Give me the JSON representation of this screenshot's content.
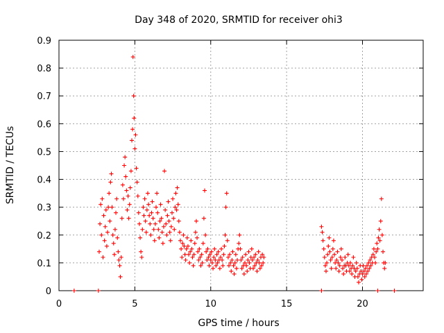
{
  "chart_data": {
    "type": "scatter",
    "title": "Day 348 of 2020, SRMTID for receiver ohi3",
    "xlabel": "GPS time / hours",
    "ylabel": "SRMTID / TECUs",
    "xlim": [
      0,
      24
    ],
    "ylim": [
      0,
      0.9
    ],
    "xticks": [
      0,
      5,
      10,
      15,
      20
    ],
    "yticks": [
      0,
      0.1,
      0.2,
      0.3,
      0.4,
      0.5,
      0.6,
      0.7,
      0.8,
      0.9
    ],
    "xtick_labels": [
      "0",
      "5",
      "10",
      "15",
      "20"
    ],
    "ytick_labels": [
      "0",
      "0.1",
      "0.2",
      "0.3",
      "0.4",
      "0.5",
      "0.6",
      "0.7",
      "0.8",
      "0.9"
    ],
    "grid": true,
    "marker": "+",
    "color": "#ff0000",
    "series": [
      {
        "name": "SRMTID ohi3",
        "points": [
          [
            1.0,
            0.0
          ],
          [
            2.6,
            0.0
          ],
          [
            17.3,
            0.0
          ],
          [
            21.0,
            0.0
          ],
          [
            22.1,
            0.0
          ],
          [
            2.65,
            0.14
          ],
          [
            2.7,
            0.24
          ],
          [
            2.75,
            0.31
          ],
          [
            2.8,
            0.2
          ],
          [
            2.85,
            0.33
          ],
          [
            2.9,
            0.12
          ],
          [
            2.95,
            0.27
          ],
          [
            3.0,
            0.18
          ],
          [
            3.05,
            0.23
          ],
          [
            3.1,
            0.29
          ],
          [
            3.15,
            0.16
          ],
          [
            3.2,
            0.21
          ],
          [
            3.25,
            0.3
          ],
          [
            3.3,
            0.35
          ],
          [
            3.35,
            0.25
          ],
          [
            3.4,
            0.39
          ],
          [
            3.45,
            0.42
          ],
          [
            3.5,
            0.3
          ],
          [
            3.55,
            0.2
          ],
          [
            3.6,
            0.17
          ],
          [
            3.65,
            0.13
          ],
          [
            3.7,
            0.22
          ],
          [
            3.75,
            0.28
          ],
          [
            3.8,
            0.33
          ],
          [
            3.85,
            0.19
          ],
          [
            3.9,
            0.14
          ],
          [
            3.95,
            0.11
          ],
          [
            4.0,
            0.09
          ],
          [
            4.05,
            0.05
          ],
          [
            4.1,
            0.12
          ],
          [
            4.15,
            0.26
          ],
          [
            4.2,
            0.38
          ],
          [
            4.25,
            0.33
          ],
          [
            4.3,
            0.45
          ],
          [
            4.35,
            0.48
          ],
          [
            4.4,
            0.41
          ],
          [
            4.45,
            0.36
          ],
          [
            4.5,
            0.29
          ],
          [
            4.55,
            0.34
          ],
          [
            4.6,
            0.26
          ],
          [
            4.65,
            0.31
          ],
          [
            4.7,
            0.37
          ],
          [
            4.75,
            0.43
          ],
          [
            4.8,
            0.54
          ],
          [
            4.85,
            0.58
          ],
          [
            4.88,
            0.84
          ],
          [
            4.92,
            0.7
          ],
          [
            4.95,
            0.62
          ],
          [
            5.0,
            0.51
          ],
          [
            5.05,
            0.56
          ],
          [
            5.1,
            0.44
          ],
          [
            5.15,
            0.39
          ],
          [
            5.2,
            0.34
          ],
          [
            5.25,
            0.28
          ],
          [
            5.3,
            0.24
          ],
          [
            5.35,
            0.19
          ],
          [
            5.4,
            0.14
          ],
          [
            5.45,
            0.12
          ],
          [
            5.5,
            0.22
          ],
          [
            5.55,
            0.3
          ],
          [
            5.6,
            0.27
          ],
          [
            5.65,
            0.33
          ],
          [
            5.7,
            0.25
          ],
          [
            5.75,
            0.21
          ],
          [
            5.8,
            0.29
          ],
          [
            5.85,
            0.35
          ],
          [
            5.9,
            0.31
          ],
          [
            5.95,
            0.27
          ],
          [
            6.0,
            0.24
          ],
          [
            6.05,
            0.2
          ],
          [
            6.1,
            0.28
          ],
          [
            6.15,
            0.32
          ],
          [
            6.2,
            0.26
          ],
          [
            6.25,
            0.22
          ],
          [
            6.3,
            0.18
          ],
          [
            6.35,
            0.24
          ],
          [
            6.4,
            0.3
          ],
          [
            6.45,
            0.35
          ],
          [
            6.5,
            0.28
          ],
          [
            6.55,
            0.22
          ],
          [
            6.6,
            0.19
          ],
          [
            6.65,
            0.25
          ],
          [
            6.7,
            0.31
          ],
          [
            6.75,
            0.26
          ],
          [
            6.8,
            0.21
          ],
          [
            6.85,
            0.17
          ],
          [
            6.9,
            0.23
          ],
          [
            6.95,
            0.43
          ],
          [
            7.0,
            0.29
          ],
          [
            7.05,
            0.24
          ],
          [
            7.1,
            0.2
          ],
          [
            7.15,
            0.27
          ],
          [
            7.2,
            0.32
          ],
          [
            7.25,
            0.25
          ],
          [
            7.3,
            0.21
          ],
          [
            7.35,
            0.18
          ],
          [
            7.4,
            0.23
          ],
          [
            7.45,
            0.28
          ],
          [
            7.5,
            0.33
          ],
          [
            7.55,
            0.26
          ],
          [
            7.6,
            0.22
          ],
          [
            7.65,
            0.3
          ],
          [
            7.7,
            0.35
          ],
          [
            7.75,
            0.29
          ],
          [
            7.8,
            0.37
          ],
          [
            7.85,
            0.31
          ],
          [
            7.9,
            0.25
          ],
          [
            7.95,
            0.21
          ],
          [
            8.0,
            0.18
          ],
          [
            8.05,
            0.15
          ],
          [
            8.1,
            0.12
          ],
          [
            8.15,
            0.17
          ],
          [
            8.2,
            0.2
          ],
          [
            8.25,
            0.16
          ],
          [
            8.3,
            0.13
          ],
          [
            8.35,
            0.11
          ],
          [
            8.4,
            0.15
          ],
          [
            8.45,
            0.19
          ],
          [
            8.5,
            0.16
          ],
          [
            8.55,
            0.13
          ],
          [
            8.6,
            0.1
          ],
          [
            8.65,
            0.14
          ],
          [
            8.7,
            0.18
          ],
          [
            8.75,
            0.15
          ],
          [
            8.8,
            0.12
          ],
          [
            8.85,
            0.09
          ],
          [
            8.9,
            0.13
          ],
          [
            8.95,
            0.17
          ],
          [
            9.0,
            0.21
          ],
          [
            9.05,
            0.25
          ],
          [
            9.1,
            0.19
          ],
          [
            9.15,
            0.14
          ],
          [
            9.2,
            0.11
          ],
          [
            9.25,
            0.15
          ],
          [
            9.3,
            0.12
          ],
          [
            9.35,
            0.09
          ],
          [
            9.4,
            0.13
          ],
          [
            9.45,
            0.1
          ],
          [
            9.5,
            0.17
          ],
          [
            9.55,
            0.26
          ],
          [
            9.6,
            0.36
          ],
          [
            9.65,
            0.2
          ],
          [
            9.7,
            0.14
          ],
          [
            9.75,
            0.11
          ],
          [
            9.8,
            0.15
          ],
          [
            9.85,
            0.12
          ],
          [
            9.9,
            0.09
          ],
          [
            9.95,
            0.13
          ],
          [
            10.0,
            0.11
          ],
          [
            10.05,
            0.14
          ],
          [
            10.1,
            0.1
          ],
          [
            10.15,
            0.08
          ],
          [
            10.2,
            0.12
          ],
          [
            10.25,
            0.15
          ],
          [
            10.3,
            0.11
          ],
          [
            10.35,
            0.09
          ],
          [
            10.4,
            0.13
          ],
          [
            10.45,
            0.1
          ],
          [
            10.5,
            0.14
          ],
          [
            10.55,
            0.11
          ],
          [
            10.6,
            0.08
          ],
          [
            10.65,
            0.12
          ],
          [
            10.7,
            0.15
          ],
          [
            10.75,
            0.11
          ],
          [
            10.8,
            0.09
          ],
          [
            10.85,
            0.13
          ],
          [
            10.9,
            0.16
          ],
          [
            10.95,
            0.2
          ],
          [
            11.0,
            0.3
          ],
          [
            11.05,
            0.35
          ],
          [
            11.1,
            0.18
          ],
          [
            11.15,
            0.12
          ],
          [
            11.2,
            0.09
          ],
          [
            11.25,
            0.13
          ],
          [
            11.3,
            0.1
          ],
          [
            11.35,
            0.07
          ],
          [
            11.4,
            0.11
          ],
          [
            11.45,
            0.14
          ],
          [
            11.5,
            0.09
          ],
          [
            11.55,
            0.06
          ],
          [
            11.6,
            0.1
          ],
          [
            11.65,
            0.13
          ],
          [
            11.7,
            0.08
          ],
          [
            11.75,
            0.11
          ],
          [
            11.8,
            0.15
          ],
          [
            11.85,
            0.17
          ],
          [
            11.9,
            0.2
          ],
          [
            11.95,
            0.15
          ],
          [
            12.0,
            0.11
          ],
          [
            12.05,
            0.08
          ],
          [
            12.1,
            0.12
          ],
          [
            12.15,
            0.09
          ],
          [
            12.2,
            0.06
          ],
          [
            12.25,
            0.1
          ],
          [
            12.3,
            0.13
          ],
          [
            12.35,
            0.09
          ],
          [
            12.4,
            0.07
          ],
          [
            12.45,
            0.11
          ],
          [
            12.5,
            0.14
          ],
          [
            12.55,
            0.1
          ],
          [
            12.6,
            0.08
          ],
          [
            12.65,
            0.12
          ],
          [
            12.7,
            0.15
          ],
          [
            12.75,
            0.11
          ],
          [
            12.8,
            0.08
          ],
          [
            12.85,
            0.12
          ],
          [
            12.9,
            0.09
          ],
          [
            12.95,
            0.13
          ],
          [
            13.0,
            0.1
          ],
          [
            13.05,
            0.07
          ],
          [
            13.1,
            0.11
          ],
          [
            13.15,
            0.14
          ],
          [
            13.2,
            0.1
          ],
          [
            13.25,
            0.08
          ],
          [
            13.3,
            0.12
          ],
          [
            13.35,
            0.09
          ],
          [
            13.4,
            0.13
          ],
          [
            13.45,
            0.1
          ],
          [
            13.5,
            0.12
          ],
          [
            17.3,
            0.23
          ],
          [
            17.35,
            0.21
          ],
          [
            17.4,
            0.18
          ],
          [
            17.45,
            0.15
          ],
          [
            17.5,
            0.12
          ],
          [
            17.55,
            0.09
          ],
          [
            17.6,
            0.07
          ],
          [
            17.65,
            0.1
          ],
          [
            17.7,
            0.13
          ],
          [
            17.75,
            0.16
          ],
          [
            17.8,
            0.19
          ],
          [
            17.85,
            0.14
          ],
          [
            17.9,
            0.11
          ],
          [
            17.95,
            0.08
          ],
          [
            18.0,
            0.12
          ],
          [
            18.05,
            0.15
          ],
          [
            18.1,
            0.18
          ],
          [
            18.15,
            0.13
          ],
          [
            18.2,
            0.1
          ],
          [
            18.25,
            0.08
          ],
          [
            18.3,
            0.11
          ],
          [
            18.35,
            0.14
          ],
          [
            18.4,
            0.1
          ],
          [
            18.45,
            0.07
          ],
          [
            18.5,
            0.09
          ],
          [
            18.55,
            0.12
          ],
          [
            18.6,
            0.15
          ],
          [
            18.65,
            0.11
          ],
          [
            18.7,
            0.08
          ],
          [
            18.75,
            0.06
          ],
          [
            18.8,
            0.09
          ],
          [
            18.85,
            0.12
          ],
          [
            18.9,
            0.09
          ],
          [
            18.95,
            0.07
          ],
          [
            19.0,
            0.1
          ],
          [
            19.05,
            0.13
          ],
          [
            19.1,
            0.09
          ],
          [
            19.15,
            0.07
          ],
          [
            19.2,
            0.1
          ],
          [
            19.25,
            0.08
          ],
          [
            19.3,
            0.06
          ],
          [
            19.35,
            0.09
          ],
          [
            19.4,
            0.12
          ],
          [
            19.45,
            0.08
          ],
          [
            19.5,
            0.05
          ],
          [
            19.55,
            0.07
          ],
          [
            19.6,
            0.1
          ],
          [
            19.65,
            0.08
          ],
          [
            19.7,
            0.05
          ],
          [
            19.75,
            0.03
          ],
          [
            19.8,
            0.06
          ],
          [
            19.85,
            0.09
          ],
          [
            19.9,
            0.07
          ],
          [
            19.95,
            0.04
          ],
          [
            20.0,
            0.06
          ],
          [
            20.05,
            0.09
          ],
          [
            20.1,
            0.07
          ],
          [
            20.15,
            0.05
          ],
          [
            20.2,
            0.08
          ],
          [
            20.25,
            0.06
          ],
          [
            20.3,
            0.09
          ],
          [
            20.35,
            0.07
          ],
          [
            20.4,
            0.1
          ],
          [
            20.45,
            0.08
          ],
          [
            20.5,
            0.11
          ],
          [
            20.55,
            0.09
          ],
          [
            20.6,
            0.12
          ],
          [
            20.65,
            0.1
          ],
          [
            20.7,
            0.13
          ],
          [
            20.75,
            0.15
          ],
          [
            20.8,
            0.12
          ],
          [
            20.85,
            0.1
          ],
          [
            20.9,
            0.14
          ],
          [
            20.95,
            0.17
          ],
          [
            21.0,
            0.15
          ],
          [
            21.05,
            0.19
          ],
          [
            21.1,
            0.22
          ],
          [
            21.15,
            0.18
          ],
          [
            21.2,
            0.25
          ],
          [
            21.25,
            0.33
          ],
          [
            21.3,
            0.2
          ],
          [
            21.35,
            0.14
          ],
          [
            21.4,
            0.1
          ],
          [
            21.45,
            0.08
          ],
          [
            21.5,
            0.1
          ]
        ]
      }
    ]
  }
}
